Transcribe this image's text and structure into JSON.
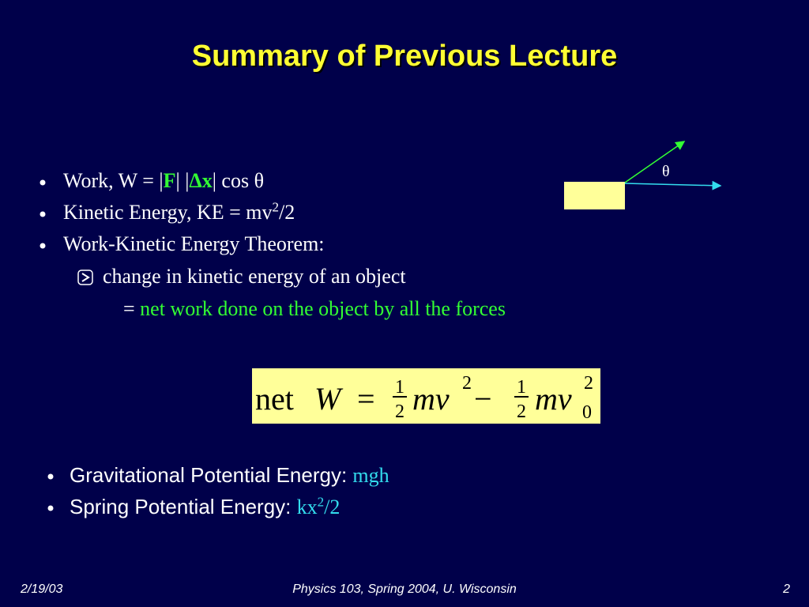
{
  "title": "Summary of Previous Lecture",
  "bullets": [
    {
      "parts": [
        "Work, W = |",
        "F",
        "| |",
        "Δx",
        "| cos θ"
      ]
    },
    {
      "parts": [
        "Kinetic Energy, KE = mv",
        "2",
        "/2"
      ]
    },
    {
      "parts": [
        "Work-Kinetic Energy Theorem:"
      ]
    },
    {
      "parts": [
        "change in kinetic energy of an object"
      ]
    },
    {
      "parts": [
        "= ",
        "net work done on the object by all the forces"
      ]
    }
  ],
  "diagram": {
    "angle_label": "θ"
  },
  "equation": {
    "net": "net",
    "W": "W",
    "equals": "=",
    "num1": "1",
    "den1": "2",
    "mv1": "mv",
    "exp1": "2",
    "minus": "−",
    "num2": "1",
    "den2": "2",
    "mv2": "mv",
    "exp2": "2",
    "sub2": "0"
  },
  "bullets2": [
    {
      "parts": [
        "Gravitational Potential Energy: ",
        "mgh"
      ]
    },
    {
      "parts": [
        "Spring Potential Energy: ",
        "kx",
        "2",
        "/2"
      ]
    }
  ],
  "footer": {
    "date": "2/19/03",
    "course": "Physics 103, Spring 2004, U. Wisconsin",
    "page": "2"
  }
}
